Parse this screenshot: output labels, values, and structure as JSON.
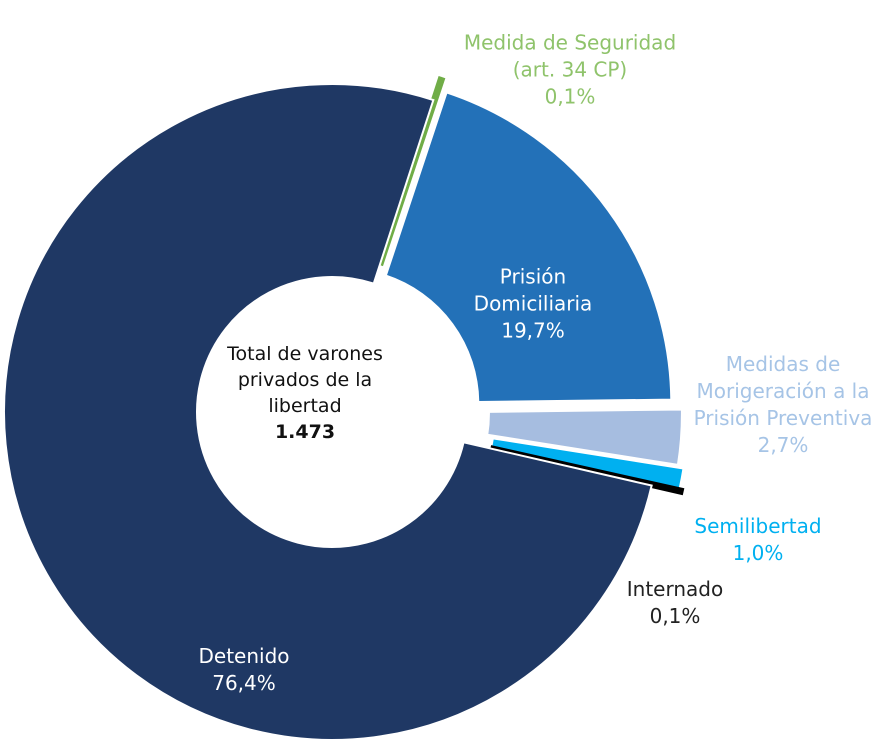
{
  "chart_data": {
    "type": "donut",
    "center_label": "Total de varones privados de la libertad",
    "total": 1473,
    "total_label": "1.473",
    "categories": [
      "Medida de Seguridad (art. 34 CP)",
      "Prisión Domiciliaria",
      "Medidas de Morigeración a la Prisión Preventiva",
      "Semilibertad",
      "Internado",
      "Detenido"
    ],
    "values": [
      0.1,
      19.7,
      2.7,
      1.0,
      0.1,
      76.4
    ],
    "value_labels": [
      "0,1%",
      "19,7%",
      "2,7%",
      "1,0%",
      "0,1%",
      "76,4%"
    ],
    "colors": [
      "#70ad47",
      "#2371b8",
      "#a6bde0",
      "#00b0f0",
      "#000000",
      "#1f3864"
    ]
  }
}
